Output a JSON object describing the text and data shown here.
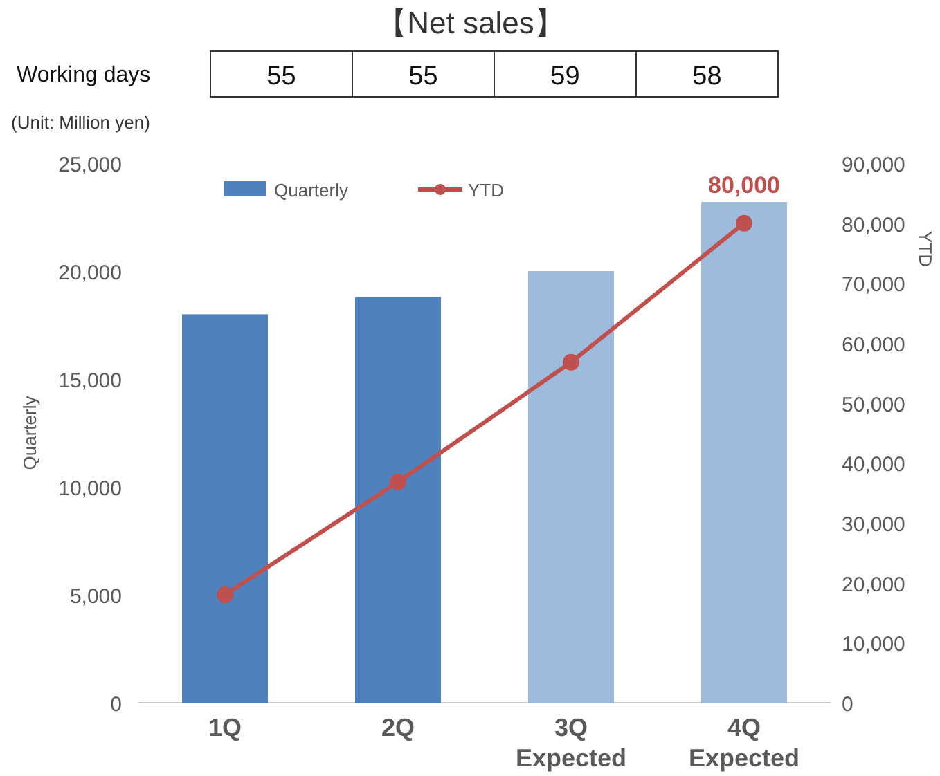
{
  "chart_data": {
    "type": "bar",
    "title": "【Net sales】",
    "ylabel": "Quarterly",
    "y2label": "YTD",
    "categories": [
      "1Q",
      "2Q",
      "3Q Expected",
      "4Q Expected"
    ],
    "series": [
      {
        "name": "Quarterly",
        "color": "#4f81bd",
        "colors": [
          "#4f81bd",
          "#4f81bd",
          "#9dbbdc",
          "#9dbbdc"
        ],
        "values": [
          18000,
          18800,
          20000,
          23200
        ]
      },
      {
        "name": "YTD",
        "type": "line",
        "axis": "y2",
        "color": "#c0504d",
        "values": [
          18000,
          36800,
          56800,
          80000
        ],
        "value_labels": [
          null,
          null,
          null,
          "80,000"
        ]
      }
    ],
    "ylim": [
      0,
      25000
    ],
    "yticks": [
      0,
      {
        "value": 5000,
        "label": "5,000"
      },
      {
        "value": 10000,
        "label": "10,000"
      },
      {
        "value": 15000,
        "label": "15,000"
      },
      {
        "value": 20000,
        "label": "20,000"
      },
      {
        "value": 25000,
        "label": "25,000"
      }
    ],
    "y2lim": [
      0,
      90000
    ],
    "y2ticks": [
      0,
      {
        "value": 10000,
        "label": "10,000"
      },
      {
        "value": 20000,
        "label": "20,000"
      },
      {
        "value": 30000,
        "label": "30,000"
      },
      {
        "value": 40000,
        "label": "40,000"
      },
      {
        "value": 50000,
        "label": "50,000"
      },
      {
        "value": 60000,
        "label": "60,000"
      },
      {
        "value": 70000,
        "label": "70,000"
      },
      {
        "value": 80000,
        "label": "80,000"
      },
      {
        "value": 90000,
        "label": "90,000"
      }
    ],
    "legend": "top left",
    "marker": "circle",
    "line_style": "solid",
    "annotations": [
      "(Unit: Million yen)",
      "Working days",
      "55",
      "55",
      "59",
      "58"
    ]
  }
}
